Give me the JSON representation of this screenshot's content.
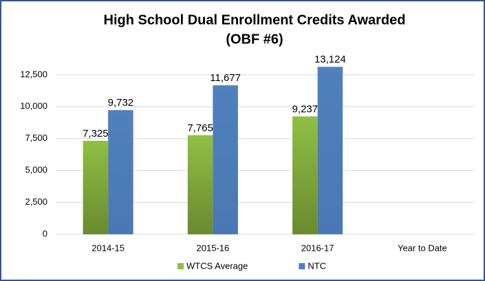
{
  "chart_data": {
    "type": "bar",
    "title": [
      "High School Dual Enrollment Credits Awarded",
      "(OBF #6)"
    ],
    "categories": [
      "2014-15",
      "2015-16",
      "2016-17",
      "Year to Date"
    ],
    "series": [
      {
        "name": "WTCS Average",
        "color": "#8fbf45",
        "values": [
          7325,
          7765,
          9237,
          null
        ],
        "value_labels": [
          "7,325",
          "7,765",
          "9,237",
          null
        ]
      },
      {
        "name": "NTC",
        "color": "#4f81bd",
        "values": [
          9732,
          11677,
          13124,
          null
        ],
        "value_labels": [
          "9,732",
          "11,677",
          "13,124",
          null
        ]
      }
    ],
    "ylim": [
      0,
      14000
    ],
    "yticks": [
      0,
      {
        "value": 2500,
        "label": "2,500"
      },
      {
        "value": 5000,
        "label": "5,000"
      },
      {
        "value": 7500,
        "label": "7,500"
      },
      {
        "value": 10000,
        "label": "10,000"
      },
      {
        "value": 12500,
        "label": "12,500"
      }
    ],
    "grid": true,
    "legend": "bottom"
  }
}
